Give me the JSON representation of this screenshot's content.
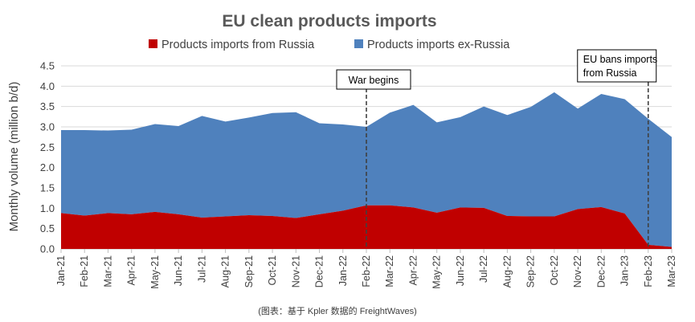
{
  "chart_data": {
    "type": "area",
    "stacked": true,
    "title": "EU clean products imports",
    "xlabel": "",
    "ylabel": "Monthly volume (million b/d)",
    "ylim": [
      0,
      4.5
    ],
    "yticks": [
      "0.0",
      "0.5",
      "1.0",
      "1.5",
      "2.0",
      "2.5",
      "3.0",
      "3.5",
      "4.0",
      "4.5"
    ],
    "categories": [
      "Jan-21",
      "Feb-21",
      "Mar-21",
      "Apr-21",
      "May-21",
      "Jun-21",
      "Jul-21",
      "Aug-21",
      "Sep-21",
      "Oct-21",
      "Nov-21",
      "Dec-21",
      "Jan-22",
      "Feb-22",
      "Mar-22",
      "Apr-22",
      "May-22",
      "Jun-22",
      "Jul-22",
      "Aug-22",
      "Sep-22",
      "Oct-22",
      "Nov-22",
      "Dec-22",
      "Jan-23",
      "Feb-23",
      "Mar-23"
    ],
    "series": [
      {
        "name": "Products imports from Russia",
        "color": "#c00000",
        "values": [
          0.88,
          0.82,
          0.88,
          0.85,
          0.91,
          0.85,
          0.77,
          0.8,
          0.83,
          0.81,
          0.76,
          0.85,
          0.94,
          1.07,
          1.07,
          1.02,
          0.89,
          1.02,
          1.01,
          0.81,
          0.8,
          0.8,
          0.98,
          1.03,
          0.87,
          0.1,
          0.05
        ]
      },
      {
        "name": "Products imports ex-Russia",
        "color": "#4f81bd",
        "values": [
          2.04,
          2.1,
          2.03,
          2.08,
          2.16,
          2.17,
          2.5,
          2.33,
          2.4,
          2.53,
          2.6,
          2.24,
          2.12,
          1.93,
          2.28,
          2.52,
          2.22,
          2.22,
          2.49,
          2.48,
          2.69,
          3.05,
          2.47,
          2.78,
          2.81,
          3.1,
          2.7
        ]
      }
    ],
    "annotations": [
      {
        "label": "War begins",
        "category": "Feb-22"
      },
      {
        "label": "EU bans imports from Russia",
        "line1": "EU bans imports",
        "line2": "from Russia",
        "category": "Feb-23"
      }
    ],
    "grid": true,
    "legend": "top"
  },
  "source": "(图表：基于 Kpler 数据的 FreightWaves)"
}
